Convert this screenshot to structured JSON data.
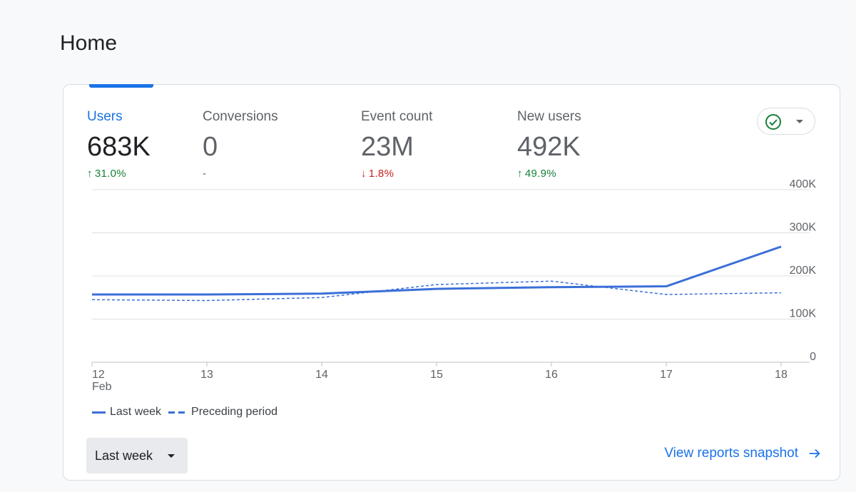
{
  "page": {
    "title": "Home"
  },
  "metrics": [
    {
      "label": "Users",
      "value": "683K",
      "change": "31.0%",
      "direction": "up"
    },
    {
      "label": "Conversions",
      "value": "0",
      "change": "-",
      "direction": "none"
    },
    {
      "label": "Event count",
      "value": "23M",
      "change": "1.8%",
      "direction": "down"
    },
    {
      "label": "New users",
      "value": "492K",
      "change": "49.9%",
      "direction": "up"
    }
  ],
  "colors": {
    "accent": "#1a73e8",
    "series": "#3b6fd8",
    "up": "#188038",
    "down": "#c5221f"
  },
  "chart_data": {
    "type": "line",
    "categories": [
      "12",
      "13",
      "14",
      "15",
      "16",
      "17",
      "18"
    ],
    "x_sublabel": "Feb",
    "series": [
      {
        "name": "Last week",
        "style": "solid",
        "values": [
          157000,
          157000,
          159000,
          170000,
          174000,
          176000,
          268000
        ]
      },
      {
        "name": "Preceding period",
        "style": "dashed",
        "values": [
          145000,
          143000,
          150000,
          180000,
          188000,
          157000,
          161000
        ]
      }
    ],
    "y_ticks": [
      "400K",
      "300K",
      "200K",
      "100K",
      "0"
    ],
    "ylim": [
      0,
      400000
    ],
    "y_axis_side": "right",
    "grid": true
  },
  "legend": {
    "solid_label": "Last week",
    "dashed_label": "Preceding period"
  },
  "footer": {
    "period_select": "Last week",
    "snapshot_link": "View reports snapshot"
  }
}
